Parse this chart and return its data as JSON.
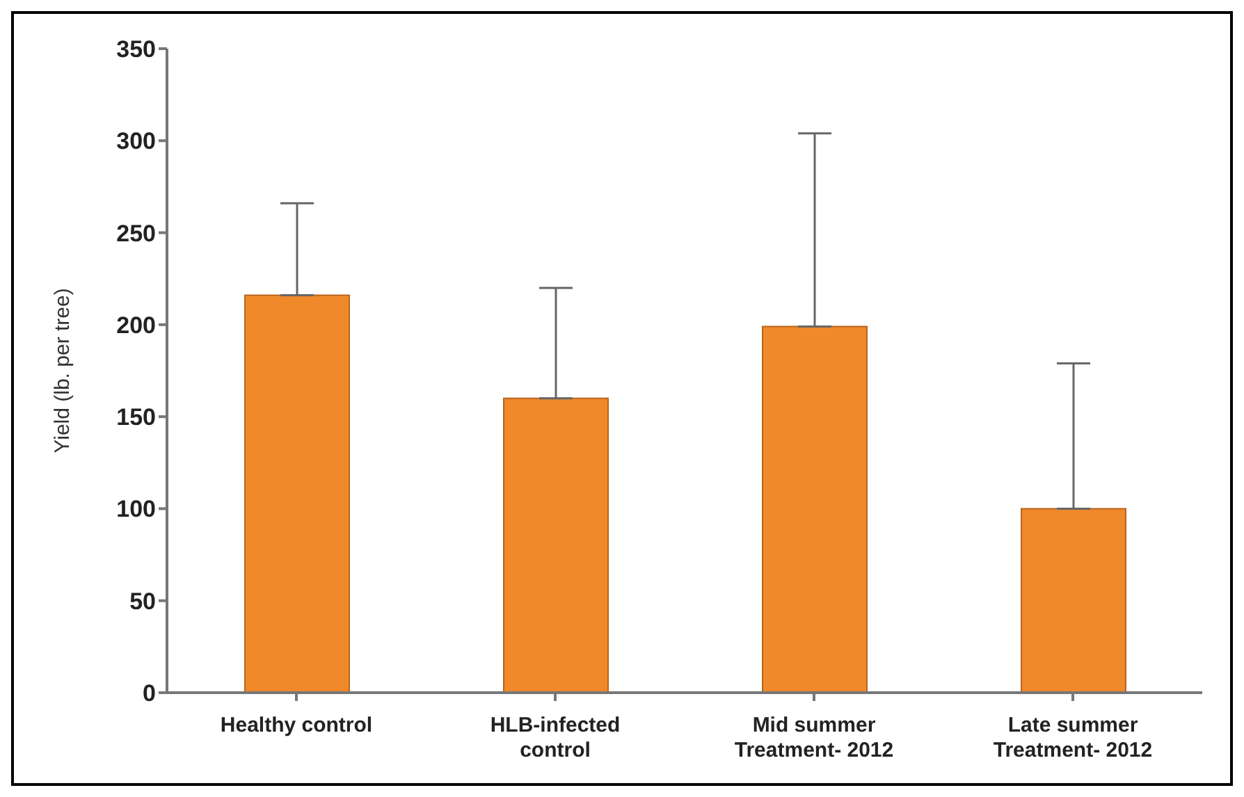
{
  "chart_data": {
    "type": "bar",
    "ylabel": "Yield (lb. per tree)",
    "categories": [
      "Healthy control",
      "HLB-infected control",
      "Mid summer Treatment- 2012",
      "Late summer Treatment- 2012"
    ],
    "values": [
      216,
      160,
      199,
      100
    ],
    "errors": [
      [
        216,
        266
      ],
      [
        160,
        220
      ],
      [
        199,
        304
      ],
      [
        100,
        179
      ]
    ],
    "color": "#f0892a",
    "ylim": [
      0,
      350
    ],
    "yticks": [
      0,
      50,
      100,
      150,
      200,
      250,
      300,
      350
    ],
    "grid": false,
    "legend": false
  }
}
